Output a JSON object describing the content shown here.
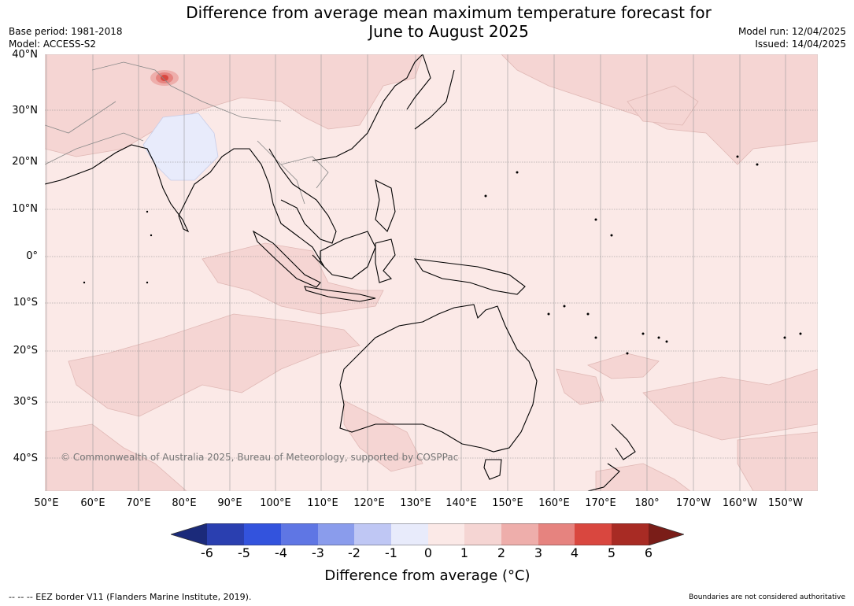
{
  "title_line1": "Difference from average mean maximum temperature forecast for",
  "title_line2": "June to August 2025",
  "base_period": "Base period: 1981-2018",
  "model": "Model: ACCESS-S2",
  "model_run": "Model run: 12/04/2025",
  "issued": "Issued: 14/04/2025",
  "lat_labels": [
    "40°N",
    "30°N",
    "20°N",
    "10°N",
    "0°",
    "10°S",
    "20°S",
    "30°S",
    "40°S"
  ],
  "lon_labels": [
    "50°E",
    "60°E",
    "70°E",
    "80°E",
    "90°E",
    "100°E",
    "110°E",
    "120°E",
    "130°E",
    "140°E",
    "150°E",
    "160°E",
    "170°E",
    "180°",
    "170°W",
    "160°W",
    "150°W"
  ],
  "copyright": "© Commonwealth of Australia 2025, Bureau of Meteorology, supported by COSPPac",
  "colorbar": {
    "title": "Difference from average ($^\\circ$C)",
    "title_display": "Difference from average (°C)",
    "ticks": [
      "-6",
      "-5",
      "-4",
      "-3",
      "-2",
      "-1",
      "0",
      "1",
      "2",
      "3",
      "4",
      "5",
      "6"
    ],
    "colors": [
      "#1b2a7a",
      "#2a3fb0",
      "#3353dd",
      "#5f76e4",
      "#8a9cec",
      "#bfc7f4",
      "#e8ebfb",
      "#fbe9e7",
      "#f5d5d3",
      "#eeaeab",
      "#e6837f",
      "#d9473f",
      "#a82b24",
      "#7a1d18"
    ]
  },
  "map_colors": {
    "anomaly_0_1": "#fbe9e7",
    "anomaly_1_2": "#f5d5d3",
    "anomaly_minus1_0": "#e8ebfb",
    "coastline": "#000000",
    "border": "#888888"
  },
  "footer_left": "--  --  -- EEZ border V11 (Flanders Marine Institute, 2019).",
  "footer_right": "Boundaries are not considered authoritative"
}
